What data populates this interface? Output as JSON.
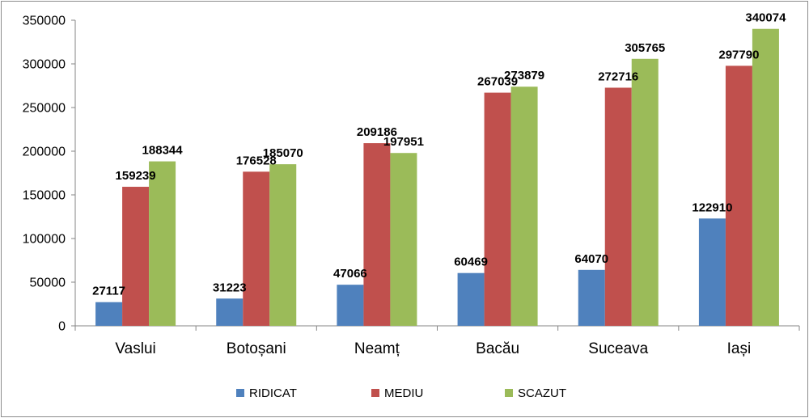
{
  "chart_data": {
    "type": "bar",
    "title": "",
    "xlabel": "",
    "ylabel": "",
    "categories": [
      "Vaslui",
      "Botoșani",
      "Neamț",
      "Bacău",
      "Suceava",
      "Iași"
    ],
    "series": [
      {
        "name": "RIDICAT",
        "color": "#4F81BD",
        "values": [
          27117,
          31223,
          47066,
          60469,
          64070,
          122910
        ]
      },
      {
        "name": "MEDIU",
        "color": "#C0504D",
        "values": [
          159239,
          176528,
          209186,
          267039,
          272716,
          297790
        ]
      },
      {
        "name": "SCAZUT",
        "color": "#9BBB59",
        "values": [
          188344,
          185070,
          197951,
          273879,
          305765,
          340074
        ]
      }
    ],
    "ylim": [
      0,
      350000
    ],
    "yticks": [
      0,
      50000,
      100000,
      150000,
      200000,
      250000,
      300000,
      350000
    ],
    "grid": false,
    "legend": "bottom",
    "data_labels": true
  }
}
